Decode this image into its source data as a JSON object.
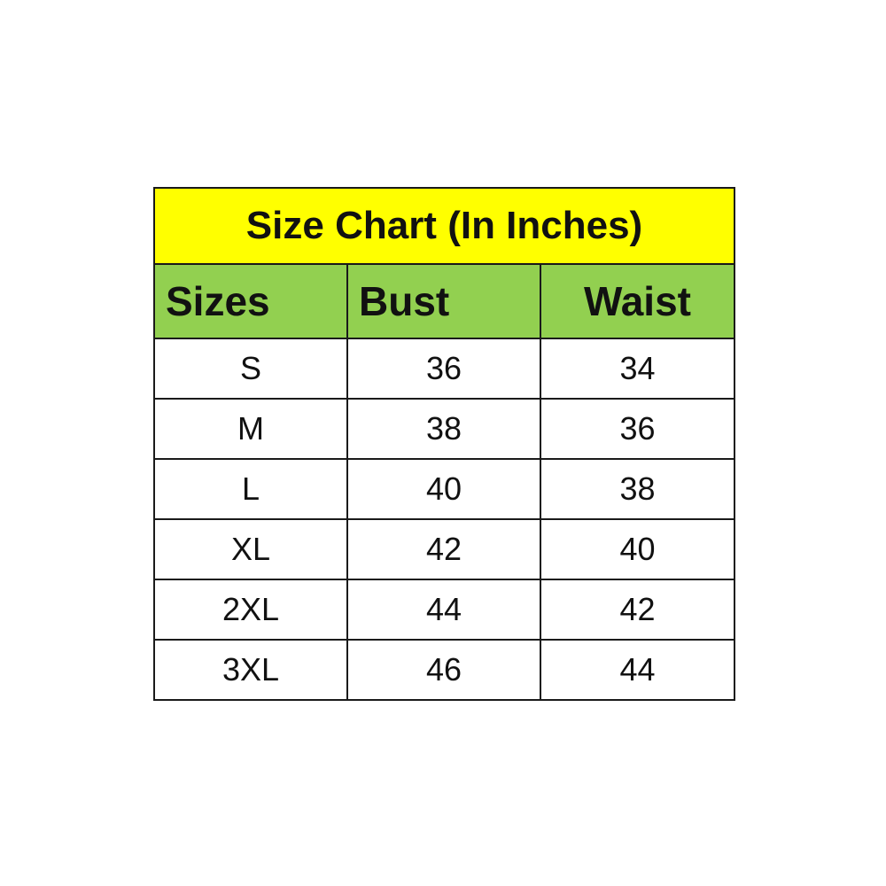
{
  "title": "Size Chart (In Inches)",
  "colors": {
    "title_bg": "#FFFF00",
    "header_bg": "#92D050"
  },
  "headers": [
    "Sizes",
    "Bust",
    "Waist"
  ],
  "rows": [
    [
      "S",
      "36",
      "34"
    ],
    [
      "M",
      "38",
      "36"
    ],
    [
      "L",
      "40",
      "38"
    ],
    [
      "XL",
      "42",
      "40"
    ],
    [
      "2XL",
      "44",
      "42"
    ],
    [
      "3XL",
      "46",
      "44"
    ]
  ]
}
